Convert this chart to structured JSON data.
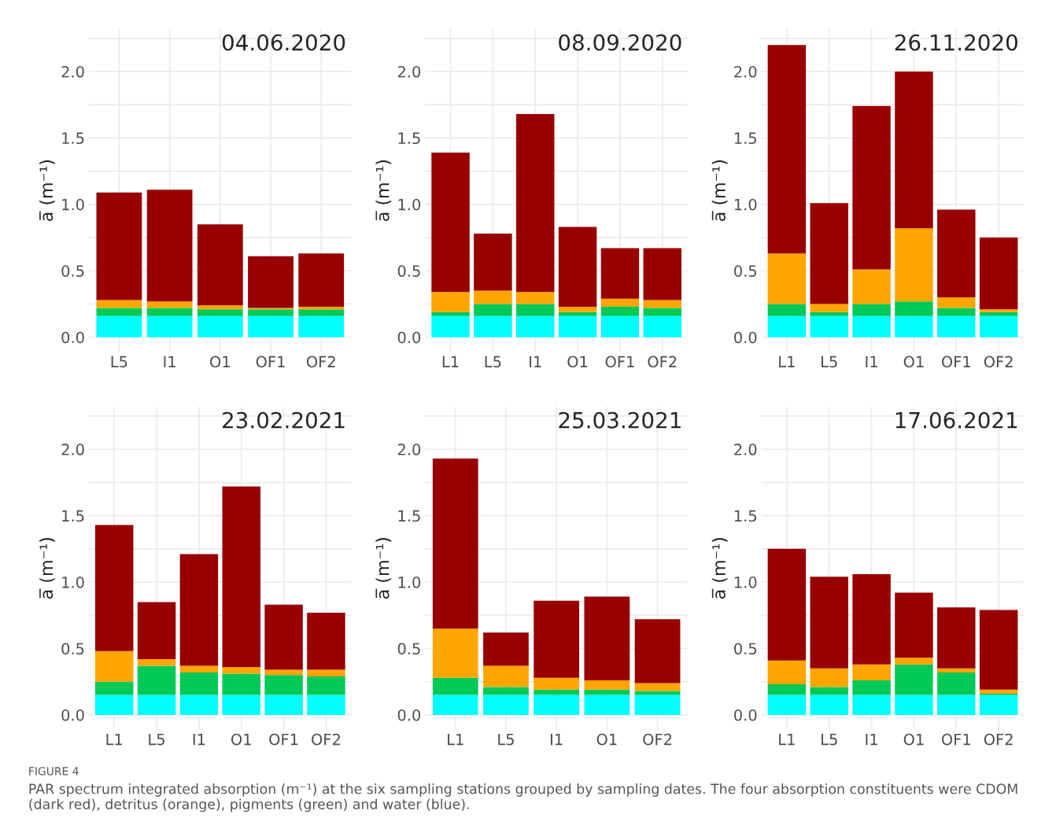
{
  "chart_data": [
    {
      "type": "bar",
      "stacked": true,
      "title": "04.06.2020",
      "ylabel": "a̅ (m⁻¹)",
      "grid": true,
      "ylim": [
        -0.11,
        2.32
      ],
      "yticks": [
        {
          "value": 0,
          "label": "0.0"
        },
        {
          "value": 0.25,
          "label": null
        },
        {
          "value": 0.5,
          "label": "0.5"
        },
        {
          "value": 0.75,
          "label": null
        },
        {
          "value": 1,
          "label": "1.0"
        },
        {
          "value": 1.25,
          "label": null
        },
        {
          "value": 1.5,
          "label": "1.5"
        },
        {
          "value": 1.75,
          "label": null
        },
        {
          "value": 2,
          "label": "2.0"
        },
        {
          "value": 2.25,
          "label": null
        }
      ],
      "categories": [
        "L5",
        "I1",
        "O1",
        "OF1",
        "OF2"
      ],
      "series": [
        {
          "color": "#00ffff",
          "values": [
            0.16,
            0.16,
            0.16,
            0.16,
            0.16
          ]
        },
        {
          "color": "#00c957",
          "values": [
            0.06,
            0.06,
            0.05,
            0.05,
            0.05
          ]
        },
        {
          "color": "#ffa500",
          "values": [
            0.06,
            0.05,
            0.03,
            0.01,
            0.02
          ]
        },
        {
          "color": "#990000",
          "values": [
            0.81,
            0.84,
            0.61,
            0.39,
            0.4
          ]
        }
      ]
    },
    {
      "type": "bar",
      "stacked": true,
      "title": "08.09.2020",
      "ylabel": "a̅ (m⁻¹)",
      "grid": true,
      "ylim": [
        -0.11,
        2.32
      ],
      "yticks": [
        {
          "value": 0,
          "label": "0.0"
        },
        {
          "value": 0.25,
          "label": null
        },
        {
          "value": 0.5,
          "label": "0.5"
        },
        {
          "value": 0.75,
          "label": null
        },
        {
          "value": 1,
          "label": "1.0"
        },
        {
          "value": 1.25,
          "label": null
        },
        {
          "value": 1.5,
          "label": "1.5"
        },
        {
          "value": 1.75,
          "label": null
        },
        {
          "value": 2,
          "label": "2.0"
        },
        {
          "value": 2.25,
          "label": null
        }
      ],
      "categories": [
        "L1",
        "L5",
        "I1",
        "O1",
        "OF1",
        "OF2"
      ],
      "series": [
        {
          "color": "#00ffff",
          "values": [
            0.16,
            0.16,
            0.16,
            0.16,
            0.16,
            0.16
          ]
        },
        {
          "color": "#00c957",
          "values": [
            0.03,
            0.09,
            0.09,
            0.03,
            0.07,
            0.06
          ]
        },
        {
          "color": "#ffa500",
          "values": [
            0.15,
            0.1,
            0.09,
            0.04,
            0.06,
            0.06
          ]
        },
        {
          "color": "#990000",
          "values": [
            1.05,
            0.43,
            1.34,
            0.6,
            0.38,
            0.39
          ]
        }
      ]
    },
    {
      "type": "bar",
      "stacked": true,
      "title": "26.11.2020",
      "ylabel": "a̅ (m⁻¹)",
      "grid": true,
      "ylim": [
        -0.11,
        2.32
      ],
      "yticks": [
        {
          "value": 0,
          "label": "0.0"
        },
        {
          "value": 0.25,
          "label": null
        },
        {
          "value": 0.5,
          "label": "0.5"
        },
        {
          "value": 0.75,
          "label": null
        },
        {
          "value": 1,
          "label": "1.0"
        },
        {
          "value": 1.25,
          "label": null
        },
        {
          "value": 1.5,
          "label": "1.5"
        },
        {
          "value": 1.75,
          "label": null
        },
        {
          "value": 2,
          "label": "2.0"
        },
        {
          "value": 2.25,
          "label": null
        }
      ],
      "categories": [
        "L1",
        "L5",
        "I1",
        "O1",
        "OF1",
        "OF2"
      ],
      "series": [
        {
          "color": "#00ffff",
          "values": [
            0.16,
            0.16,
            0.16,
            0.16,
            0.16,
            0.16
          ]
        },
        {
          "color": "#00c957",
          "values": [
            0.09,
            0.03,
            0.09,
            0.11,
            0.06,
            0.03
          ]
        },
        {
          "color": "#ffa500",
          "values": [
            0.38,
            0.06,
            0.26,
            0.55,
            0.08,
            0.02
          ]
        },
        {
          "color": "#990000",
          "values": [
            1.57,
            0.76,
            1.23,
            1.18,
            0.66,
            0.54
          ]
        }
      ]
    },
    {
      "type": "bar",
      "stacked": true,
      "title": "23.02.2021",
      "ylabel": "a̅ (m⁻¹)",
      "grid": true,
      "ylim": [
        -0.11,
        2.32
      ],
      "yticks": [
        {
          "value": 0,
          "label": "0.0"
        },
        {
          "value": 0.25,
          "label": null
        },
        {
          "value": 0.5,
          "label": "0.5"
        },
        {
          "value": 0.75,
          "label": null
        },
        {
          "value": 1,
          "label": "1.0"
        },
        {
          "value": 1.25,
          "label": null
        },
        {
          "value": 1.5,
          "label": "1.5"
        },
        {
          "value": 1.75,
          "label": null
        },
        {
          "value": 2,
          "label": "2.0"
        },
        {
          "value": 2.25,
          "label": null
        }
      ],
      "categories": [
        "L1",
        "L5",
        "I1",
        "O1",
        "OF1",
        "OF2"
      ],
      "series": [
        {
          "color": "#00ffff",
          "values": [
            0.15,
            0.15,
            0.15,
            0.15,
            0.15,
            0.15
          ]
        },
        {
          "color": "#00c957",
          "values": [
            0.1,
            0.22,
            0.17,
            0.16,
            0.15,
            0.14
          ]
        },
        {
          "color": "#ffa500",
          "values": [
            0.23,
            0.05,
            0.05,
            0.05,
            0.04,
            0.05
          ]
        },
        {
          "color": "#990000",
          "values": [
            0.95,
            0.43,
            0.84,
            1.36,
            0.49,
            0.43
          ]
        }
      ]
    },
    {
      "type": "bar",
      "stacked": true,
      "title": "25.03.2021",
      "ylabel": "a̅ (m⁻¹)",
      "grid": true,
      "ylim": [
        -0.11,
        2.32
      ],
      "yticks": [
        {
          "value": 0,
          "label": "0.0"
        },
        {
          "value": 0.25,
          "label": null
        },
        {
          "value": 0.5,
          "label": "0.5"
        },
        {
          "value": 0.75,
          "label": null
        },
        {
          "value": 1,
          "label": "1.0"
        },
        {
          "value": 1.25,
          "label": null
        },
        {
          "value": 1.5,
          "label": "1.5"
        },
        {
          "value": 1.75,
          "label": null
        },
        {
          "value": 2,
          "label": "2.0"
        },
        {
          "value": 2.25,
          "label": null
        }
      ],
      "categories": [
        "L1",
        "L5",
        "I1",
        "O1",
        "OF2"
      ],
      "series": [
        {
          "color": "#00ffff",
          "values": [
            0.15,
            0.15,
            0.15,
            0.15,
            0.15
          ]
        },
        {
          "color": "#00c957",
          "values": [
            0.13,
            0.06,
            0.04,
            0.04,
            0.03
          ]
        },
        {
          "color": "#ffa500",
          "values": [
            0.37,
            0.16,
            0.09,
            0.07,
            0.06
          ]
        },
        {
          "color": "#990000",
          "values": [
            1.28,
            0.25,
            0.58,
            0.63,
            0.48
          ]
        }
      ]
    },
    {
      "type": "bar",
      "stacked": true,
      "title": "17.06.2021",
      "ylabel": "a̅ (m⁻¹)",
      "grid": true,
      "ylim": [
        -0.11,
        2.32
      ],
      "yticks": [
        {
          "value": 0,
          "label": "0.0"
        },
        {
          "value": 0.25,
          "label": null
        },
        {
          "value": 0.5,
          "label": "0.5"
        },
        {
          "value": 0.75,
          "label": null
        },
        {
          "value": 1,
          "label": "1.0"
        },
        {
          "value": 1.25,
          "label": null
        },
        {
          "value": 1.5,
          "label": "1.5"
        },
        {
          "value": 1.75,
          "label": null
        },
        {
          "value": 2,
          "label": "2.0"
        },
        {
          "value": 2.25,
          "label": null
        }
      ],
      "categories": [
        "L1",
        "L5",
        "I1",
        "O1",
        "OF1",
        "OF2"
      ],
      "series": [
        {
          "color": "#00ffff",
          "values": [
            0.15,
            0.15,
            0.15,
            0.15,
            0.15,
            0.15
          ]
        },
        {
          "color": "#00c957",
          "values": [
            0.08,
            0.06,
            0.11,
            0.23,
            0.17,
            0.01
          ]
        },
        {
          "color": "#ffa500",
          "values": [
            0.18,
            0.14,
            0.12,
            0.05,
            0.03,
            0.03
          ]
        },
        {
          "color": "#990000",
          "values": [
            0.84,
            0.69,
            0.68,
            0.49,
            0.46,
            0.6
          ]
        }
      ],
      "annotations": [
        "FIGURE 4",
        "PAR spectrum integrated absorption (m⁻¹) at the six sampling stations grouped by sampling dates. The four absorption constituents were CDOM (dark red), detritus (orange), pigments (green) and water (blue)."
      ]
    }
  ]
}
